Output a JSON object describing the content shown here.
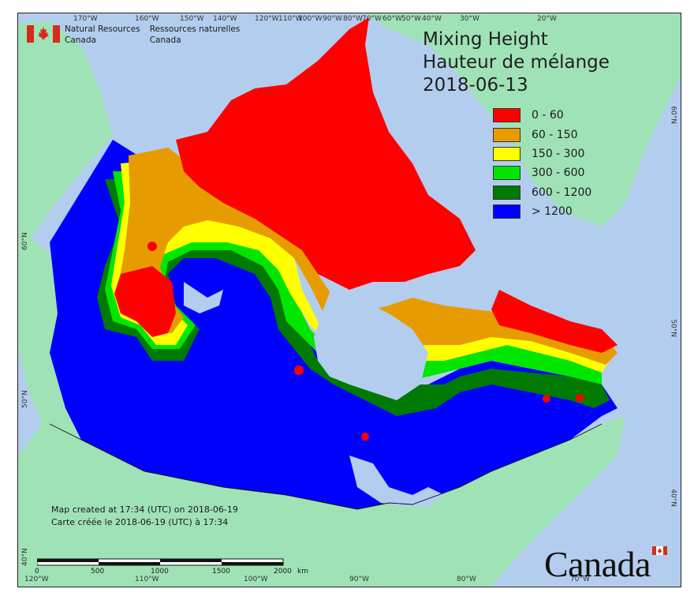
{
  "department": {
    "name_en_line1": "Natural Resources",
    "name_en_line2": "Canada",
    "name_fr_line1": "Ressources naturelles",
    "name_fr_line2": "Canada"
  },
  "title": {
    "line1": "Mixing Height",
    "line2": "Hauteur de mélange",
    "date": "2018-06-13"
  },
  "legend": [
    {
      "label": "0 - 60",
      "color": "#ff0000"
    },
    {
      "label": "60 - 150",
      "color": "#e69c00"
    },
    {
      "label": "150 - 300",
      "color": "#ffff00"
    },
    {
      "label": "300 - 600",
      "color": "#00e600"
    },
    {
      "label": "600 - 1200",
      "color": "#007a00"
    },
    {
      "label": "> 1200",
      "color": "#0000ff"
    }
  ],
  "colors": {
    "ocean": "#b3cdee",
    "land_other": "#9fe2b6",
    "lakes": "#b3cdee"
  },
  "top_longitudes": [
    "170°W",
    "160°W",
    "150°W",
    "140°W",
    "120°W",
    "110°W",
    "100°W",
    "90°W",
    "80°W",
    "70°W",
    "60°W",
    "50°W",
    "40°W",
    "30°W",
    "20°W"
  ],
  "bottom_longitudes": [
    "120°W",
    "110°W",
    "100°W",
    "90°W",
    "80°W",
    "70°W"
  ],
  "left_latitudes": [
    "60°N",
    "50°N",
    "40°N"
  ],
  "right_latitudes": [
    "60°N",
    "50°N",
    "40°N"
  ],
  "credits": {
    "line1": "Map created at 17:34 (UTC) on 2018-06-19",
    "line2": "Carte créée le 2018-06-19 (UTC) à 17:34"
  },
  "scalebar": {
    "labels": [
      "0",
      "500",
      "1000",
      "1500",
      "2000"
    ],
    "unit": "km"
  },
  "wordmark": "Canada"
}
